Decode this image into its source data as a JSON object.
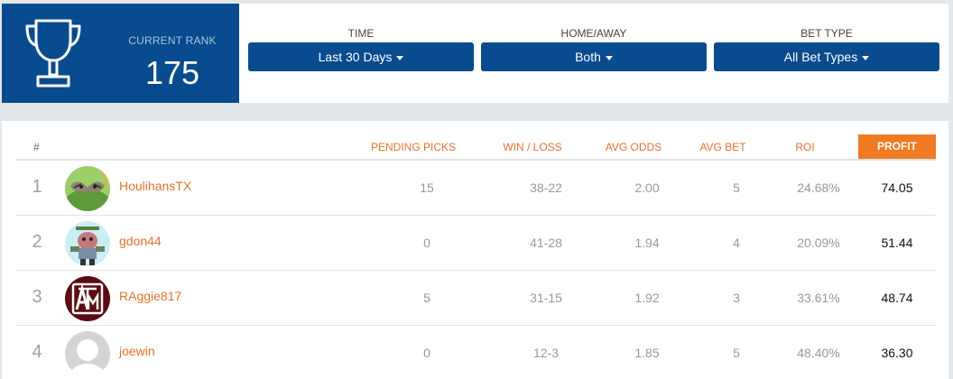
{
  "rank": {
    "label": "CURRENT RANK",
    "value": "175"
  },
  "filters": [
    {
      "label": "TIME",
      "value": "Last 30 Days"
    },
    {
      "label": "HOME/AWAY",
      "value": "Both"
    },
    {
      "label": "BET TYPE",
      "value": "All Bet Types"
    }
  ],
  "table": {
    "headers": {
      "num": "#",
      "pending": "PENDING PICKS",
      "winloss": "WIN / LOSS",
      "odds": "AVG ODDS",
      "bet": "AVG BET",
      "roi": "ROI",
      "profit": "PROFIT"
    },
    "rows": [
      {
        "rank": "1",
        "name": "HoulihansTX",
        "pending": "15",
        "winloss": "38-22",
        "odds": "2.00",
        "bet": "5",
        "roi": "24.68%",
        "profit": "74.05",
        "avatar_icon": "animal-avatar-icon"
      },
      {
        "rank": "2",
        "name": "gdon44",
        "pending": "0",
        "winloss": "41-28",
        "odds": "1.94",
        "bet": "4",
        "roi": "20.09%",
        "profit": "51.44",
        "avatar_icon": "cartoon-avatar-icon"
      },
      {
        "rank": "3",
        "name": "RAggie817",
        "pending": "5",
        "winloss": "31-15",
        "odds": "1.92",
        "bet": "3",
        "roi": "33.61%",
        "profit": "48.74",
        "avatar_icon": "texas-am-logo-avatar-icon"
      },
      {
        "rank": "4",
        "name": "joewin",
        "pending": "0",
        "winloss": "12-3",
        "odds": "1.85",
        "bet": "5",
        "roi": "48.40%",
        "profit": "36.30",
        "avatar_icon": "default-user-avatar-icon"
      }
    ]
  },
  "colors": {
    "brand_blue": "#084b8e",
    "accent_orange": "#f07b22",
    "link_orange": "#e8702a",
    "page_bg": "#e4e7ea"
  }
}
